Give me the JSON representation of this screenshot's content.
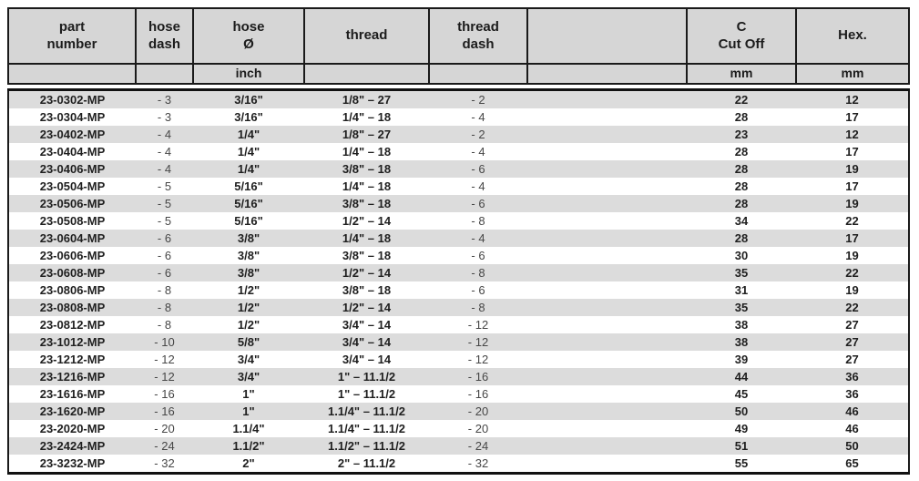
{
  "colors": {
    "header_bg": "#d6d6d6",
    "stripe_bg": "#dcdcdc",
    "border": "#1a1a1a",
    "text_bold": "#1f1f1f",
    "text_dash": "#474747"
  },
  "table": {
    "headers": [
      "part\nnumber",
      "hose\ndash",
      "hose\nØ",
      "thread",
      "thread\ndash",
      "",
      "C\nCut Off",
      "Hex."
    ],
    "units": [
      "",
      "",
      "inch",
      "",
      "",
      "",
      "mm",
      "mm"
    ],
    "row_cell_names": [
      "part-number",
      "hose-dash",
      "hose-diameter-inch",
      "thread",
      "thread-dash",
      "spacer",
      "c-cutoff-mm",
      "hex-mm"
    ],
    "rows": [
      [
        "23-0302-MP",
        "- 3",
        "3/16\"",
        "1/8\" – 27",
        "- 2",
        "",
        "22",
        "12"
      ],
      [
        "23-0304-MP",
        "- 3",
        "3/16\"",
        "1/4\" – 18",
        "- 4",
        "",
        "28",
        "17"
      ],
      [
        "23-0402-MP",
        "- 4",
        "1/4\"",
        "1/8\" – 27",
        "- 2",
        "",
        "23",
        "12"
      ],
      [
        "23-0404-MP",
        "- 4",
        "1/4\"",
        "1/4\" – 18",
        "- 4",
        "",
        "28",
        "17"
      ],
      [
        "23-0406-MP",
        "- 4",
        "1/4\"",
        "3/8\" – 18",
        "- 6",
        "",
        "28",
        "19"
      ],
      [
        "23-0504-MP",
        "- 5",
        "5/16\"",
        "1/4\" – 18",
        "- 4",
        "",
        "28",
        "17"
      ],
      [
        "23-0506-MP",
        "- 5",
        "5/16\"",
        "3/8\" – 18",
        "- 6",
        "",
        "28",
        "19"
      ],
      [
        "23-0508-MP",
        "- 5",
        "5/16\"",
        "1/2\" – 14",
        "- 8",
        "",
        "34",
        "22"
      ],
      [
        "23-0604-MP",
        "- 6",
        "3/8\"",
        "1/4\" – 18",
        "- 4",
        "",
        "28",
        "17"
      ],
      [
        "23-0606-MP",
        "- 6",
        "3/8\"",
        "3/8\" – 18",
        "- 6",
        "",
        "30",
        "19"
      ],
      [
        "23-0608-MP",
        "- 6",
        "3/8\"",
        "1/2\" – 14",
        "- 8",
        "",
        "35",
        "22"
      ],
      [
        "23-0806-MP",
        "- 8",
        "1/2\"",
        "3/8\" – 18",
        "- 6",
        "",
        "31",
        "19"
      ],
      [
        "23-0808-MP",
        "- 8",
        "1/2\"",
        "1/2\" – 14",
        "- 8",
        "",
        "35",
        "22"
      ],
      [
        "23-0812-MP",
        "- 8",
        "1/2\"",
        "3/4\" – 14",
        "- 12",
        "",
        "38",
        "27"
      ],
      [
        "23-1012-MP",
        "- 10",
        "5/8\"",
        "3/4\" – 14",
        "- 12",
        "",
        "38",
        "27"
      ],
      [
        "23-1212-MP",
        "- 12",
        "3/4\"",
        "3/4\" – 14",
        "- 12",
        "",
        "39",
        "27"
      ],
      [
        "23-1216-MP",
        "- 12",
        "3/4\"",
        "1\" – 11.1/2",
        "- 16",
        "",
        "44",
        "36"
      ],
      [
        "23-1616-MP",
        "- 16",
        "1\"",
        "1\" – 11.1/2",
        "- 16",
        "",
        "45",
        "36"
      ],
      [
        "23-1620-MP",
        "- 16",
        "1\"",
        "1.1/4\" – 11.1/2",
        "- 20",
        "",
        "50",
        "46"
      ],
      [
        "23-2020-MP",
        "- 20",
        "1.1/4\"",
        "1.1/4\" – 11.1/2",
        "- 20",
        "",
        "49",
        "46"
      ],
      [
        "23-2424-MP",
        "- 24",
        "1.1/2\"",
        "1.1/2\" – 11.1/2",
        "- 24",
        "",
        "51",
        "50"
      ],
      [
        "23-3232-MP",
        "- 32",
        "2\"",
        "2\" – 11.1/2",
        "- 32",
        "",
        "55",
        "65"
      ]
    ]
  }
}
